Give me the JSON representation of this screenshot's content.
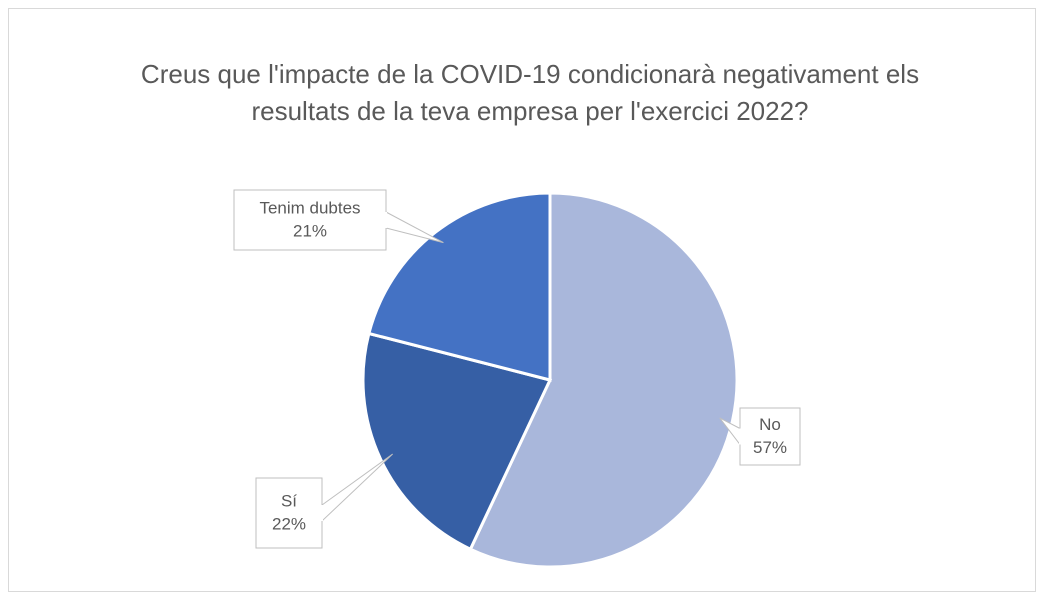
{
  "chart_data": {
    "type": "pie",
    "title": "Creus que l'impacte de la COVID-19 condicionarà negativament els resultats de la teva empresa per l'exercici 2022?",
    "categories": [
      "No",
      "Sí",
      "Tenim dubtes"
    ],
    "values": [
      57,
      22,
      21
    ],
    "value_labels": [
      "57%",
      "22%",
      "21%"
    ],
    "colors": [
      "#a9b7db",
      "#365fa5",
      "#4472c4"
    ]
  }
}
